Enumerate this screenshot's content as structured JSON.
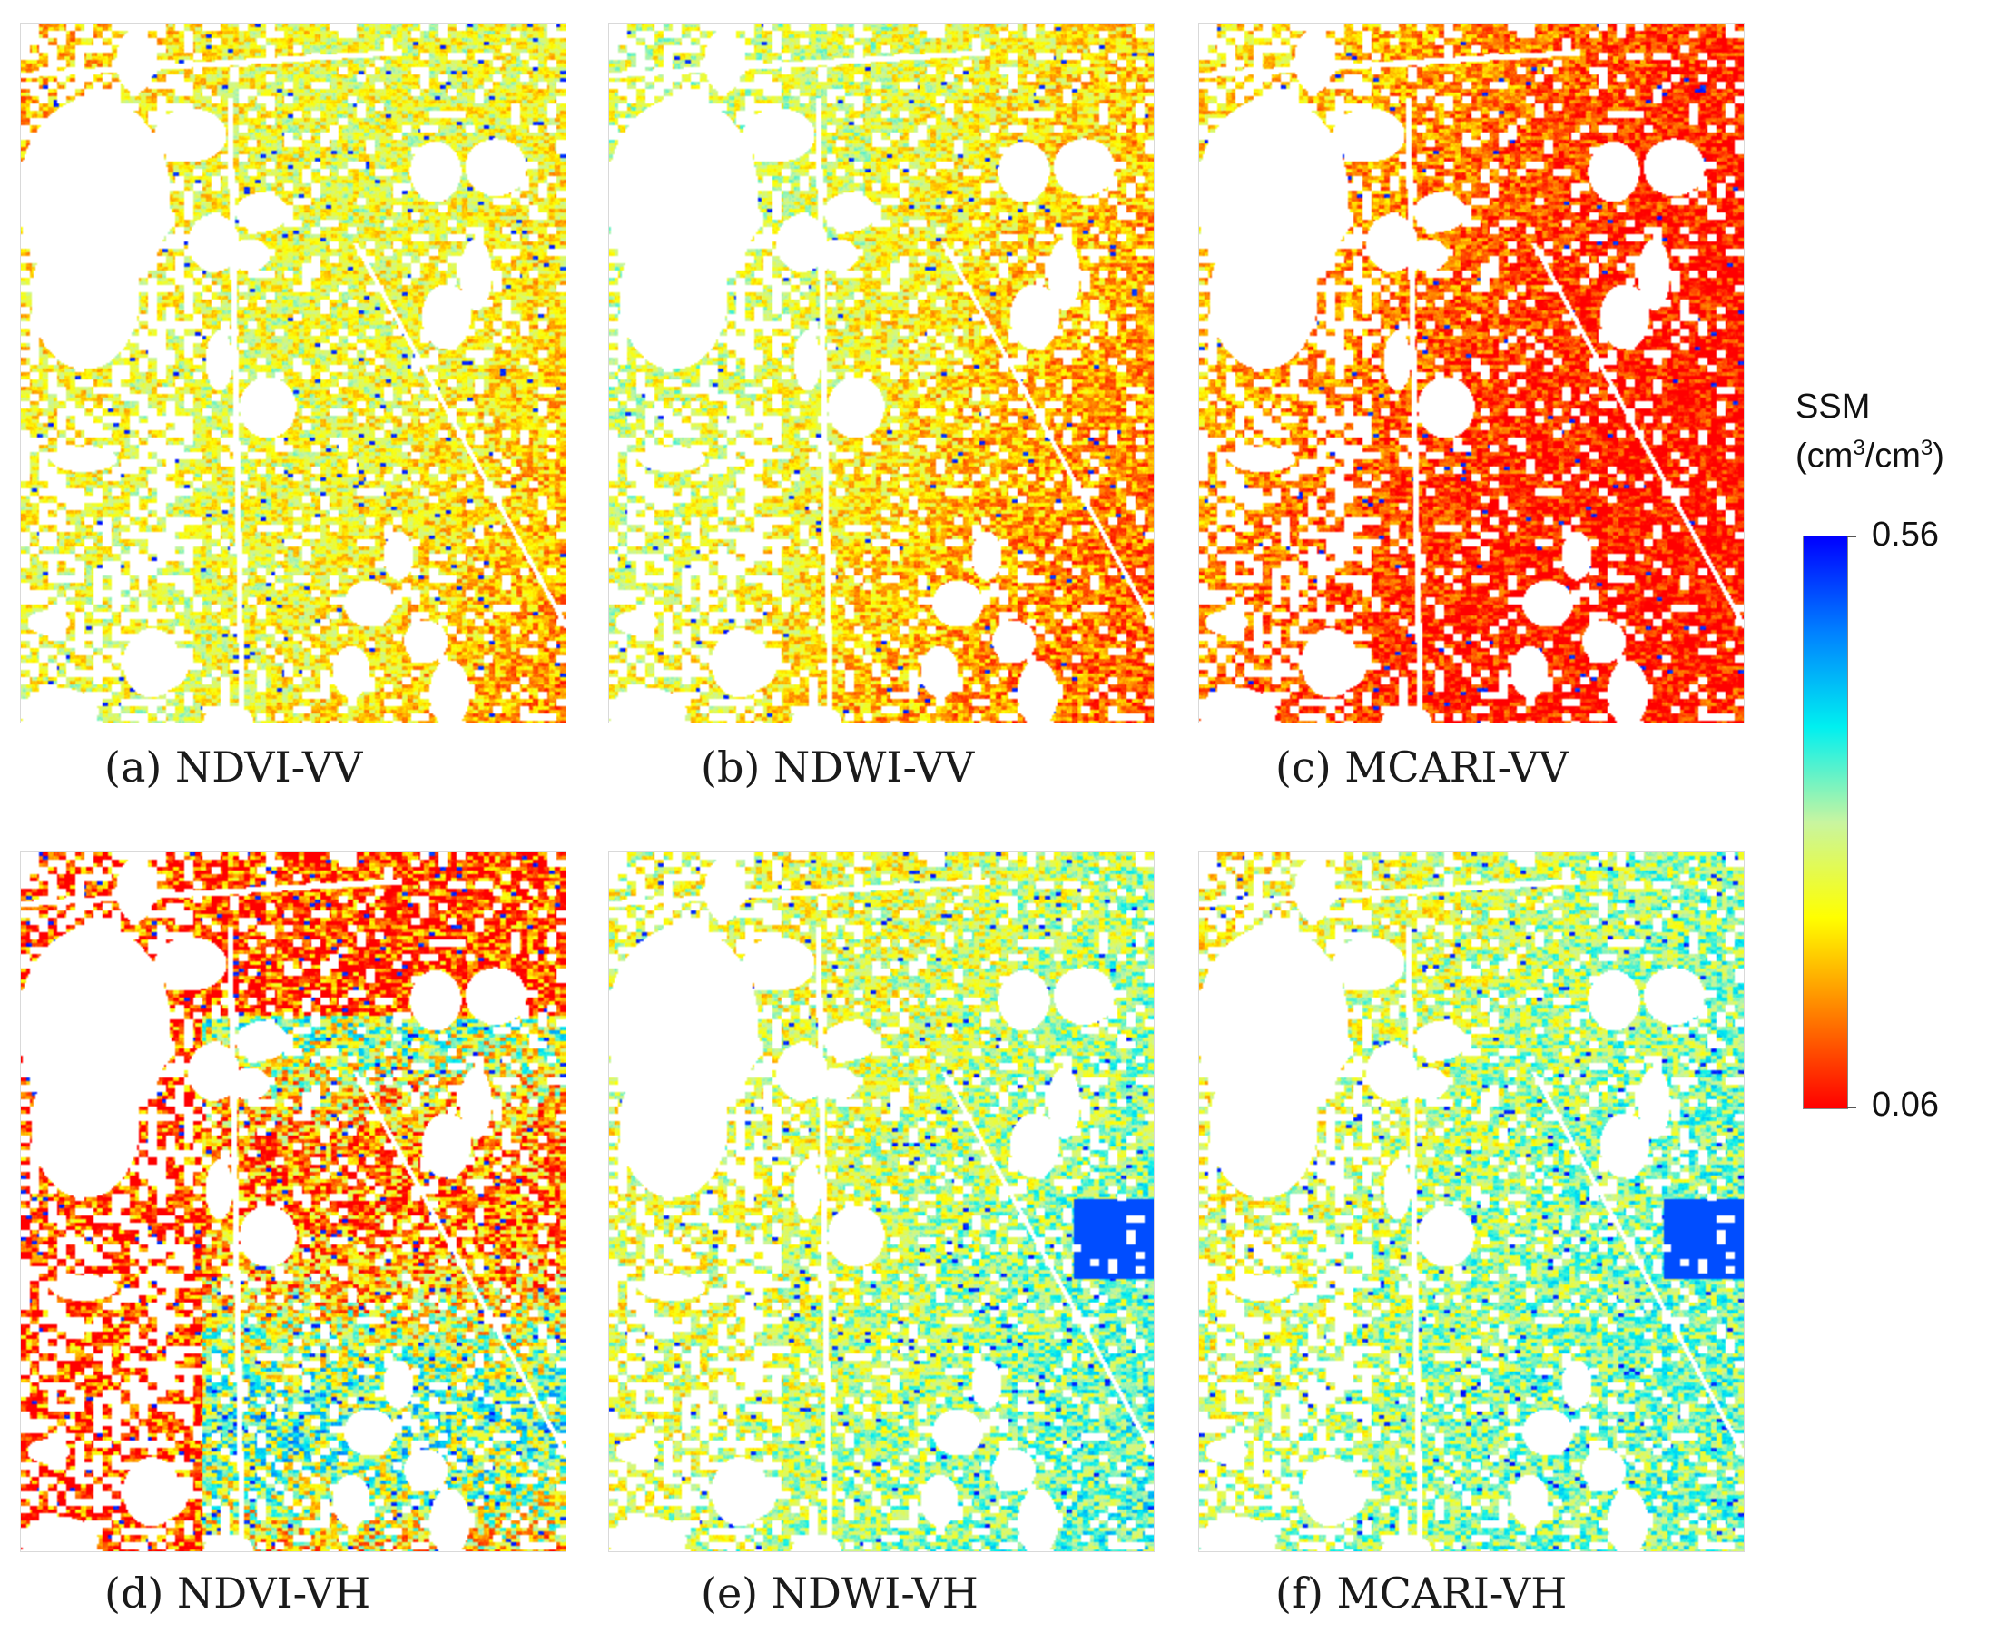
{
  "panels": [
    {
      "id": "a",
      "caption": "(a) NDVI-VV",
      "palette": "vv-ndvi"
    },
    {
      "id": "b",
      "caption": "(b) NDWI-VV",
      "palette": "vv-ndwi"
    },
    {
      "id": "c",
      "caption": "(c) MCARI-VV",
      "palette": "vv-mcari"
    },
    {
      "id": "d",
      "caption": "(d) NDVI-VH",
      "palette": "vh-ndvi"
    },
    {
      "id": "e",
      "caption": "(e) NDWI-VH",
      "palette": "vh-ndwi"
    },
    {
      "id": "f",
      "caption": "(f) MCARI-VH",
      "palette": "vh-mcari"
    }
  ],
  "legend": {
    "title_line1": "SSM",
    "title_unit_a": "(cm",
    "title_unit_sup1": "3",
    "title_unit_b": "/cm",
    "title_unit_sup2": "3",
    "title_unit_c": ")",
    "max_label": "0.56",
    "min_label": "0.06",
    "max_value": 0.56,
    "min_value": 0.06,
    "colors": [
      "#ff0000",
      "#ff8000",
      "#ffff00",
      "#c8f5a0",
      "#00f0f0",
      "#0080ff",
      "#0000ff"
    ]
  }
}
